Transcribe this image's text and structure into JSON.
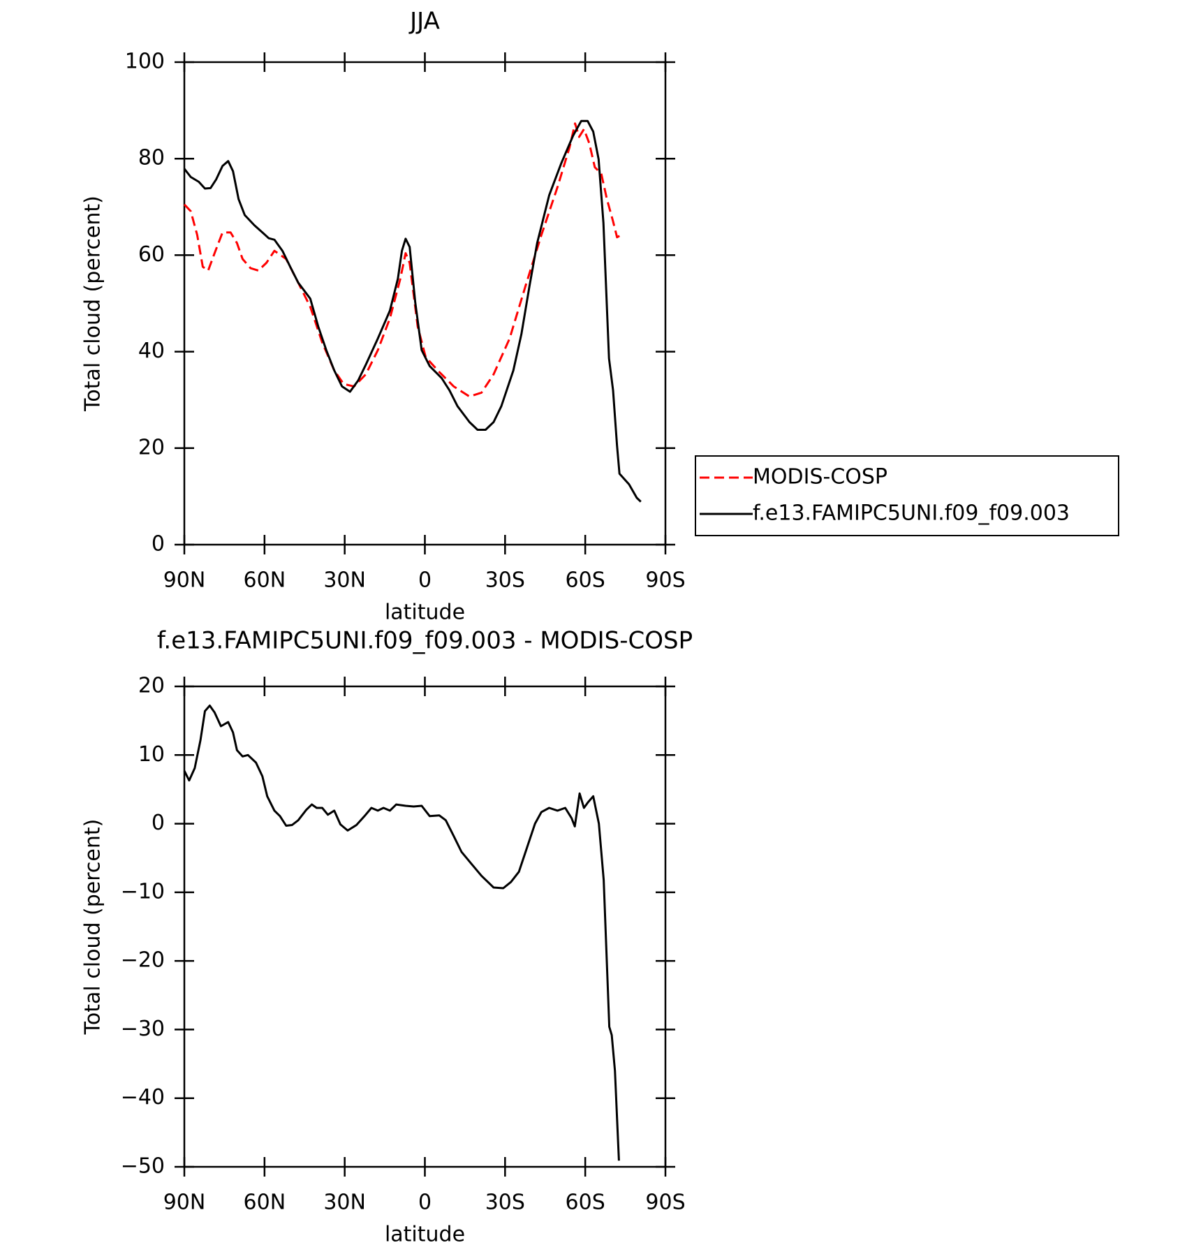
{
  "chart_data": [
    {
      "type": "line",
      "title": "JJA",
      "xlabel": "latitude",
      "ylabel": "Total cloud (percent)",
      "xlim": [
        90,
        -90
      ],
      "ylim": [
        0,
        100
      ],
      "xticks": [
        {
          "value": 90,
          "label": "90N"
        },
        {
          "value": 60,
          "label": "60N"
        },
        {
          "value": 30,
          "label": "30N"
        },
        0,
        {
          "value": -30,
          "label": "30S"
        },
        {
          "value": -60,
          "label": "60S"
        },
        {
          "value": -90,
          "label": "90S"
        }
      ],
      "yticks": [
        0,
        20,
        40,
        60,
        80,
        100
      ],
      "legend": "right",
      "series": [
        {
          "name": "MODIS-COSP",
          "color": "#ff0000",
          "dash": true,
          "x": [
            90,
            87.6,
            85.2,
            83.1,
            81.1,
            78.7,
            75.7,
            72.7,
            70.3,
            68.2,
            65.2,
            62.3,
            59.3,
            56.3,
            51.9,
            47.4,
            42.9,
            38.4,
            33.9,
            30.4,
            26.5,
            22.1,
            17.6,
            13.1,
            9.2,
            7.2,
            5.7,
            2.7,
            -0.3,
            -4.8,
            -10.8,
            -16.7,
            -21.2,
            -25.7,
            -31.7,
            -37.6,
            -43.6,
            -49.6,
            -54.1,
            -56.2,
            -57.7,
            -59.5,
            -61.5,
            -63.6,
            -66.0,
            -68.1,
            -70.4,
            -71.9,
            -72.8
          ],
          "values": [
            70.5,
            69.1,
            64.2,
            57.6,
            56.8,
            60.4,
            64.7,
            64.7,
            62.5,
            59.2,
            57.3,
            56.8,
            58.4,
            60.9,
            59.2,
            54.3,
            49.3,
            41.9,
            36.1,
            33.3,
            32.8,
            35.3,
            40.3,
            46.9,
            55.1,
            60.4,
            58.4,
            45.2,
            38.9,
            36.1,
            32.8,
            30.7,
            31.5,
            35.3,
            42.7,
            53.5,
            64.2,
            74.1,
            82.3,
            87.3,
            84.5,
            86.1,
            83.2,
            78.2,
            76.9,
            71.6,
            67.0,
            63.7,
            64.0
          ]
        },
        {
          "name": "f.e13.FAMIPC5UNI.f09_f09.003",
          "color": "#000000",
          "dash": false,
          "x": [
            90,
            87.6,
            84.6,
            82.3,
            80.2,
            78.1,
            75.7,
            73.6,
            71.8,
            69.7,
            67.4,
            63.8,
            60.8,
            58.4,
            56.3,
            53.3,
            50.4,
            47.4,
            42.9,
            39.9,
            36.9,
            33.9,
            31.0,
            28.0,
            25.0,
            22.1,
            17.6,
            13.1,
            10.1,
            8.6,
            7.2,
            5.7,
            3.6,
            1.2,
            -1.8,
            -6.3,
            -9.2,
            -12.2,
            -16.7,
            -19.7,
            -22.7,
            -25.7,
            -28.6,
            -33.1,
            -36.1,
            -39.1,
            -42.0,
            -46.5,
            -51.0,
            -55.5,
            -58.5,
            -60.9,
            -63.0,
            -65.0,
            -66.8,
            -68.9,
            -70.4,
            -71.9,
            -72.8,
            -76.4,
            -79.3,
            -80.8
          ],
          "values": [
            77.9,
            76.2,
            75.2,
            73.8,
            73.9,
            75.7,
            78.5,
            79.5,
            77.4,
            71.6,
            68.3,
            66.2,
            64.7,
            63.5,
            63.2,
            60.9,
            57.6,
            54.3,
            51.0,
            45.2,
            40.3,
            36.1,
            32.8,
            31.7,
            34.0,
            37.3,
            42.7,
            48.5,
            55.1,
            60.9,
            63.4,
            61.7,
            50.2,
            40.3,
            37.0,
            34.5,
            32.0,
            28.7,
            25.4,
            23.8,
            23.8,
            25.4,
            28.7,
            36.1,
            43.6,
            53.5,
            62.5,
            72.4,
            79.0,
            84.8,
            87.8,
            87.8,
            85.6,
            79.9,
            66.7,
            38.6,
            32.0,
            20.5,
            14.7,
            12.5,
            9.7,
            8.9
          ]
        }
      ]
    },
    {
      "type": "line",
      "title": "f.e13.FAMIPC5UNI.f09_f09.003 - MODIS-COSP",
      "xlabel": "latitude",
      "ylabel": "Total cloud (percent)",
      "xlim": [
        90,
        -90
      ],
      "ylim": [
        -50,
        20
      ],
      "xticks": [
        {
          "value": 90,
          "label": "90N"
        },
        {
          "value": 60,
          "label": "60N"
        },
        {
          "value": 30,
          "label": "30N"
        },
        0,
        {
          "value": -30,
          "label": "30S"
        },
        {
          "value": -60,
          "label": "60S"
        },
        {
          "value": -90,
          "label": "90S"
        }
      ],
      "yticks": [
        {
          "value": -50,
          "label": "−50"
        },
        {
          "value": -40,
          "label": "−40"
        },
        {
          "value": -30,
          "label": "−30"
        },
        {
          "value": -20,
          "label": "−20"
        },
        {
          "value": -10,
          "label": "−10"
        },
        0,
        10,
        20
      ],
      "series": [
        {
          "color": "#000000",
          "dash": false,
          "x": [
            90,
            88.2,
            86.1,
            84.0,
            82.3,
            80.5,
            78.7,
            76.3,
            73.6,
            71.8,
            70.3,
            68.2,
            66.2,
            63.2,
            60.8,
            59.0,
            56.3,
            54.2,
            51.9,
            49.7,
            47.4,
            44.4,
            42.3,
            40.5,
            38.4,
            36.3,
            33.9,
            31.6,
            28.9,
            25.6,
            22.6,
            20.0,
            17.6,
            15.5,
            13.1,
            10.7,
            7.2,
            4.2,
            1.2,
            -1.8,
            -5.4,
            -7.8,
            -10.8,
            -13.7,
            -17.3,
            -21.2,
            -25.7,
            -29.3,
            -32.2,
            -35.2,
            -38.2,
            -41.2,
            -43.6,
            -46.5,
            -49.6,
            -52.5,
            -54.9,
            -56.1,
            -57.9,
            -59.5,
            -61.0,
            -63.0,
            -65.1,
            -66.9,
            -69.0,
            -69.9,
            -71.1,
            -72.6
          ],
          "values": [
            7.7,
            6.3,
            8.1,
            12.1,
            16.4,
            17.2,
            16.2,
            14.2,
            14.8,
            13.3,
            10.7,
            9.8,
            10.0,
            8.9,
            6.9,
            4.0,
            1.9,
            1.1,
            -0.3,
            -0.2,
            0.5,
            2.0,
            2.8,
            2.3,
            2.3,
            1.3,
            1.9,
            -0.1,
            -1.0,
            -0.2,
            1.1,
            2.3,
            1.9,
            2.3,
            1.9,
            2.8,
            2.6,
            2.5,
            2.6,
            1.1,
            1.2,
            0.5,
            -1.8,
            -4.1,
            -5.8,
            -7.6,
            -9.3,
            -9.4,
            -8.5,
            -7.0,
            -3.5,
            0.0,
            1.7,
            2.3,
            1.9,
            2.3,
            0.8,
            -0.4,
            4.4,
            2.3,
            3.1,
            4.0,
            0.0,
            -8.2,
            -29.6,
            -30.8,
            -36.0,
            -49.1
          ]
        }
      ]
    }
  ]
}
